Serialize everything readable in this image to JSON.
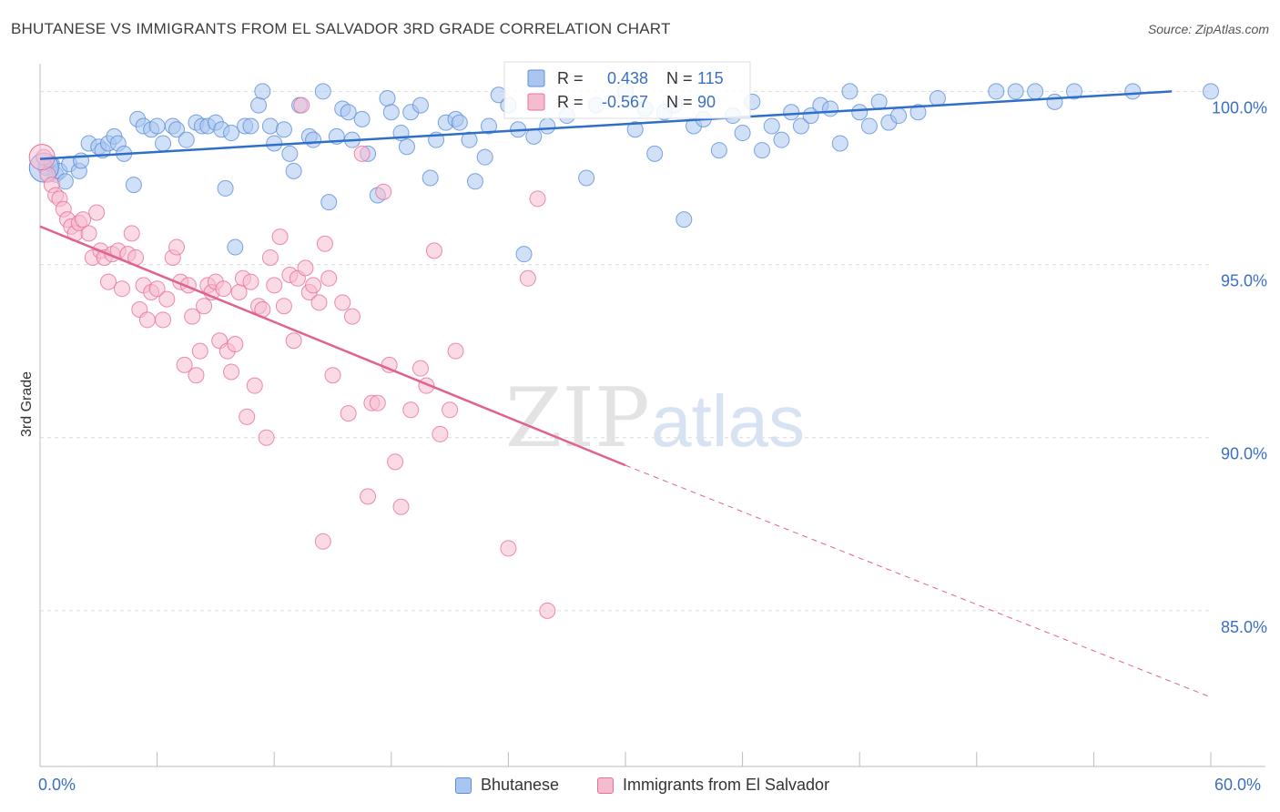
{
  "chart_data": {
    "type": "scatter",
    "title": "BHUTANESE VS IMMIGRANTS FROM EL SALVADOR 3RD GRADE CORRELATION CHART",
    "source": "Source: ZipAtlas.com",
    "ylabel": "3rd Grade",
    "xlabel": "",
    "xlim": [
      0,
      60
    ],
    "ylim": [
      80.5,
      100.8
    ],
    "x_tick_labels": [
      "0.0%",
      "60.0%"
    ],
    "y_ticks": [
      {
        "value": 100,
        "label": "100.0%"
      },
      {
        "value": 95,
        "label": "95.0%"
      },
      {
        "value": 90,
        "label": "90.0%"
      },
      {
        "value": 85,
        "label": "85.0%"
      }
    ],
    "grid": true,
    "watermark": "ZIPatlas",
    "legend_stats": [
      {
        "r_label": "R =",
        "r_value": "0.438",
        "n_label": "N =",
        "n_value": "115",
        "color": "#5b8fd9"
      },
      {
        "r_label": "R =",
        "r_value": "-0.567",
        "n_label": "N =",
        "n_value": "90",
        "color": "#e86f9a"
      }
    ],
    "series": [
      {
        "name": "Bhutanese",
        "color": "#5b8fd9",
        "fill": "#a9c6f0",
        "trend": {
          "x": [
            0,
            58
          ],
          "y": [
            98.05,
            100.0
          ]
        },
        "points": [
          [
            0.3,
            97.8
          ],
          [
            0.6,
            97.9
          ],
          [
            0.8,
            97.6
          ],
          [
            1.0,
            97.7
          ],
          [
            1.3,
            97.4
          ],
          [
            1.5,
            97.9
          ],
          [
            2.0,
            97.7
          ],
          [
            2.1,
            98.0
          ],
          [
            2.5,
            98.5
          ],
          [
            3.0,
            98.4
          ],
          [
            3.2,
            98.3
          ],
          [
            3.5,
            98.5
          ],
          [
            3.8,
            98.7
          ],
          [
            4.0,
            98.5
          ],
          [
            4.3,
            98.2
          ],
          [
            4.8,
            97.3
          ],
          [
            5.0,
            99.2
          ],
          [
            5.3,
            99.0
          ],
          [
            5.7,
            98.9
          ],
          [
            6.0,
            99.0
          ],
          [
            6.3,
            98.5
          ],
          [
            6.8,
            99.0
          ],
          [
            7.0,
            98.9
          ],
          [
            7.5,
            98.6
          ],
          [
            8.0,
            99.1
          ],
          [
            8.3,
            99.0
          ],
          [
            8.6,
            99.0
          ],
          [
            9.0,
            99.1
          ],
          [
            9.3,
            98.9
          ],
          [
            9.5,
            97.2
          ],
          [
            9.8,
            98.8
          ],
          [
            10.0,
            95.5
          ],
          [
            10.5,
            99.0
          ],
          [
            10.8,
            99.0
          ],
          [
            11.2,
            99.6
          ],
          [
            11.4,
            100.0
          ],
          [
            11.8,
            99.0
          ],
          [
            12.0,
            98.5
          ],
          [
            12.5,
            98.9
          ],
          [
            12.8,
            98.2
          ],
          [
            13.0,
            97.7
          ],
          [
            13.3,
            99.6
          ],
          [
            13.8,
            98.7
          ],
          [
            14.0,
            98.6
          ],
          [
            14.5,
            100.0
          ],
          [
            14.8,
            96.8
          ],
          [
            15.2,
            98.7
          ],
          [
            15.5,
            99.5
          ],
          [
            15.8,
            99.4
          ],
          [
            16.0,
            98.6
          ],
          [
            16.5,
            99.2
          ],
          [
            16.8,
            98.2
          ],
          [
            17.3,
            97.0
          ],
          [
            17.8,
            99.8
          ],
          [
            18.0,
            99.4
          ],
          [
            18.5,
            98.8
          ],
          [
            18.8,
            98.4
          ],
          [
            19.0,
            99.4
          ],
          [
            19.5,
            99.6
          ],
          [
            20.0,
            97.5
          ],
          [
            20.3,
            98.6
          ],
          [
            20.8,
            99.1
          ],
          [
            21.3,
            99.2
          ],
          [
            21.5,
            99.1
          ],
          [
            22.0,
            98.6
          ],
          [
            22.3,
            97.4
          ],
          [
            22.8,
            98.1
          ],
          [
            23.0,
            99.0
          ],
          [
            23.5,
            99.9
          ],
          [
            24.0,
            99.6
          ],
          [
            24.5,
            98.9
          ],
          [
            24.8,
            95.3
          ],
          [
            25.3,
            98.7
          ],
          [
            26.0,
            99.0
          ],
          [
            27.0,
            99.3
          ],
          [
            28.0,
            97.5
          ],
          [
            28.5,
            99.6
          ],
          [
            30.0,
            100.0
          ],
          [
            30.5,
            98.9
          ],
          [
            31.0,
            99.5
          ],
          [
            31.5,
            98.2
          ],
          [
            32.0,
            99.4
          ],
          [
            32.5,
            99.6
          ],
          [
            33.0,
            96.3
          ],
          [
            33.5,
            99.0
          ],
          [
            34.0,
            99.2
          ],
          [
            34.8,
            98.3
          ],
          [
            35.5,
            99.3
          ],
          [
            36.0,
            98.8
          ],
          [
            36.5,
            99.7
          ],
          [
            37.0,
            98.3
          ],
          [
            37.5,
            99.0
          ],
          [
            38.0,
            98.6
          ],
          [
            38.5,
            99.4
          ],
          [
            39.0,
            99.0
          ],
          [
            39.5,
            99.3
          ],
          [
            40.0,
            99.6
          ],
          [
            40.5,
            99.5
          ],
          [
            41.0,
            98.5
          ],
          [
            41.5,
            100.0
          ],
          [
            42.0,
            99.4
          ],
          [
            42.5,
            99.0
          ],
          [
            43.0,
            99.7
          ],
          [
            43.5,
            99.1
          ],
          [
            44.0,
            99.3
          ],
          [
            45.0,
            99.4
          ],
          [
            46.0,
            99.8
          ],
          [
            49.0,
            100.0
          ],
          [
            50.0,
            100.0
          ],
          [
            51.0,
            100.0
          ],
          [
            52.0,
            99.7
          ],
          [
            53.0,
            100.0
          ],
          [
            56.0,
            100.0
          ],
          [
            60.0,
            100.0
          ]
        ]
      },
      {
        "name": "Immigrants from El Salvador",
        "color": "#e86f9a",
        "fill": "#f5bcd0",
        "trend": {
          "x": [
            0,
            30
          ],
          "y": [
            96.1,
            89.2
          ]
        },
        "trend_extension": {
          "x": [
            30,
            60
          ],
          "y": [
            89.2,
            82.5
          ]
        },
        "points": [
          [
            0.2,
            98.1
          ],
          [
            0.4,
            97.6
          ],
          [
            0.6,
            97.3
          ],
          [
            0.8,
            97.0
          ],
          [
            1.0,
            96.9
          ],
          [
            1.2,
            96.6
          ],
          [
            1.4,
            96.3
          ],
          [
            1.6,
            96.1
          ],
          [
            1.8,
            95.9
          ],
          [
            2.0,
            96.2
          ],
          [
            2.2,
            96.3
          ],
          [
            2.5,
            95.9
          ],
          [
            2.7,
            95.2
          ],
          [
            2.9,
            96.5
          ],
          [
            3.1,
            95.4
          ],
          [
            3.3,
            95.2
          ],
          [
            3.5,
            94.5
          ],
          [
            3.7,
            95.3
          ],
          [
            4.0,
            95.4
          ],
          [
            4.2,
            94.3
          ],
          [
            4.5,
            95.3
          ],
          [
            4.7,
            95.9
          ],
          [
            4.9,
            95.2
          ],
          [
            5.1,
            93.7
          ],
          [
            5.3,
            94.4
          ],
          [
            5.5,
            93.4
          ],
          [
            5.7,
            94.2
          ],
          [
            6.0,
            94.3
          ],
          [
            6.3,
            93.4
          ],
          [
            6.5,
            94.0
          ],
          [
            6.8,
            95.2
          ],
          [
            7.0,
            95.5
          ],
          [
            7.2,
            94.5
          ],
          [
            7.4,
            92.1
          ],
          [
            7.6,
            94.4
          ],
          [
            7.8,
            93.5
          ],
          [
            8.0,
            91.8
          ],
          [
            8.2,
            92.5
          ],
          [
            8.4,
            93.8
          ],
          [
            8.6,
            94.4
          ],
          [
            8.8,
            94.2
          ],
          [
            9.0,
            94.5
          ],
          [
            9.2,
            92.8
          ],
          [
            9.4,
            94.3
          ],
          [
            9.6,
            92.5
          ],
          [
            9.8,
            91.9
          ],
          [
            10.0,
            92.7
          ],
          [
            10.2,
            94.2
          ],
          [
            10.4,
            94.6
          ],
          [
            10.6,
            90.6
          ],
          [
            10.8,
            94.5
          ],
          [
            11.0,
            91.5
          ],
          [
            11.2,
            93.8
          ],
          [
            11.4,
            93.7
          ],
          [
            11.6,
            90.0
          ],
          [
            11.8,
            95.2
          ],
          [
            12.0,
            94.4
          ],
          [
            12.3,
            95.8
          ],
          [
            12.5,
            93.8
          ],
          [
            12.8,
            94.7
          ],
          [
            13.0,
            92.8
          ],
          [
            13.2,
            94.6
          ],
          [
            13.4,
            99.6
          ],
          [
            13.6,
            94.9
          ],
          [
            13.8,
            94.2
          ],
          [
            14.0,
            94.4
          ],
          [
            14.3,
            93.9
          ],
          [
            14.6,
            95.6
          ],
          [
            14.8,
            94.6
          ],
          [
            15.0,
            91.8
          ],
          [
            15.5,
            93.9
          ],
          [
            15.8,
            90.7
          ],
          [
            16.0,
            93.5
          ],
          [
            16.5,
            98.2
          ],
          [
            16.8,
            88.3
          ],
          [
            17.0,
            91.0
          ],
          [
            17.3,
            91.0
          ],
          [
            17.6,
            97.1
          ],
          [
            17.9,
            92.1
          ],
          [
            18.2,
            89.3
          ],
          [
            18.5,
            88.0
          ],
          [
            19.0,
            90.8
          ],
          [
            19.5,
            92.0
          ],
          [
            19.8,
            91.5
          ],
          [
            20.2,
            95.4
          ],
          [
            20.5,
            90.1
          ],
          [
            21.0,
            90.8
          ],
          [
            21.3,
            92.5
          ],
          [
            24.0,
            86.8
          ],
          [
            25.0,
            94.6
          ],
          [
            25.5,
            96.9
          ],
          [
            26.0,
            85.0
          ],
          [
            14.5,
            87.0
          ]
        ]
      }
    ]
  },
  "legend_bottom": [
    {
      "name": "Bhutanese"
    },
    {
      "name": "Immigrants from El Salvador"
    }
  ]
}
